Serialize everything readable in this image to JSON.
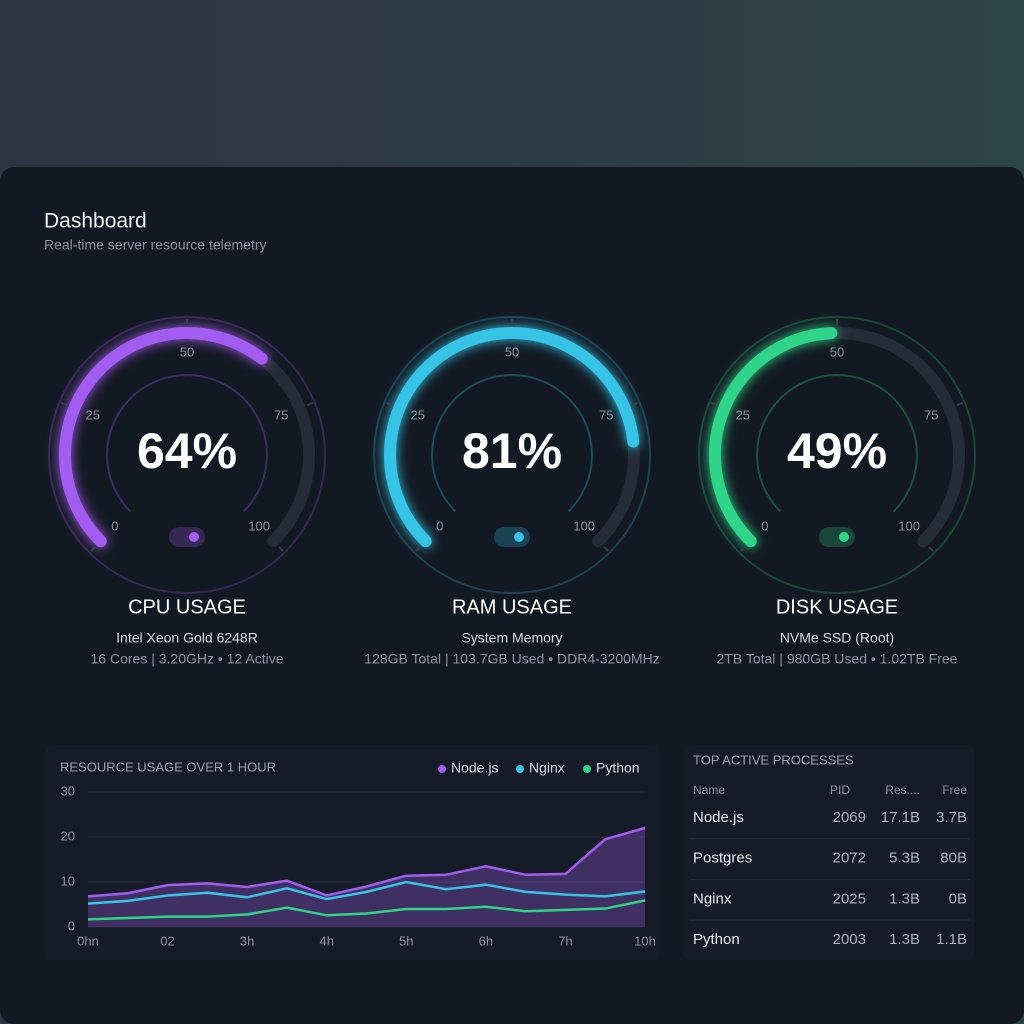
{
  "header": {
    "title": "Dashboard",
    "subtitle": "Real-time server resource telemetry"
  },
  "chart_data": [
    {
      "type": "gauge",
      "title": "CPU USAGE",
      "subtitle": "Intel Xeon Gold 6248R",
      "note": "16 Cores | 3.20GHz • 12 Active",
      "values": [
        64
      ],
      "value_labels": [
        "64%"
      ],
      "ylim": [
        0,
        100
      ],
      "yticks": [
        0,
        25,
        50,
        75,
        100
      ],
      "color": "#a35cf0"
    },
    {
      "type": "gauge",
      "title": "RAM USAGE",
      "subtitle": "System Memory",
      "note": "128GB Total | 103.7GB Used • DDR4-3200MHz",
      "values": [
        81
      ],
      "value_labels": [
        "81%"
      ],
      "ylim": [
        0,
        100
      ],
      "yticks": [
        0,
        25,
        50,
        75,
        100
      ],
      "color": "#36c3e6"
    },
    {
      "type": "gauge",
      "title": "DISK USAGE",
      "subtitle": "NVMe SSD (Root)",
      "note": "2TB Total | 980GB Used • 1.02TB Free",
      "values": [
        49
      ],
      "value_labels": [
        "49%"
      ],
      "ylim": [
        0,
        100
      ],
      "yticks": [
        0,
        25,
        50,
        75,
        100
      ],
      "color": "#2fd488"
    },
    {
      "type": "line",
      "title": "RESOURCE USAGE OVER 1 HOUR",
      "categories": [
        "0hn",
        null,
        "02",
        null,
        "3h",
        null,
        "4h",
        null,
        "5h",
        null,
        "6h",
        null,
        "7h",
        null,
        "10h"
      ],
      "series": [
        {
          "name": "Node.js",
          "color": "#a35cf0",
          "fill": true,
          "values": [
            6.8,
            7.5,
            9.3,
            9.7,
            8.9,
            10.3,
            7,
            9,
            11.4,
            11.6,
            13.5,
            11.6,
            11.8,
            19.5,
            22
          ]
        },
        {
          "name": "Nginx",
          "color": "#36c3e6",
          "values": [
            5.2,
            5.8,
            7,
            7.6,
            6.6,
            8.6,
            6.2,
            7.8,
            10,
            8.4,
            9.4,
            7.8,
            7.2,
            6.8,
            7.9
          ]
        },
        {
          "name": "Python",
          "color": "#2fd488",
          "values": [
            1.7,
            2,
            2.3,
            2.3,
            2.8,
            4.3,
            2.6,
            3,
            4,
            4,
            4.5,
            3.5,
            3.8,
            4.1,
            5.9
          ]
        }
      ],
      "ylim": [
        0,
        30
      ],
      "yticks": [
        0,
        10,
        20,
        30
      ],
      "grid": true,
      "legend": "top-right"
    }
  ],
  "table": {
    "title": "TOP ACTIVE PROCESSES",
    "columns": [
      "Name",
      "PID",
      "Res....",
      "Free"
    ],
    "rows": [
      [
        "Node.js",
        "2069",
        "17.1B",
        "3.7B"
      ],
      [
        "Postgres",
        "2072",
        "5.3B",
        "80B"
      ],
      [
        "Nginx",
        "2025",
        "1.3B",
        "0B"
      ],
      [
        "Python",
        "2003",
        "1.3B",
        "1.1B"
      ]
    ]
  }
}
